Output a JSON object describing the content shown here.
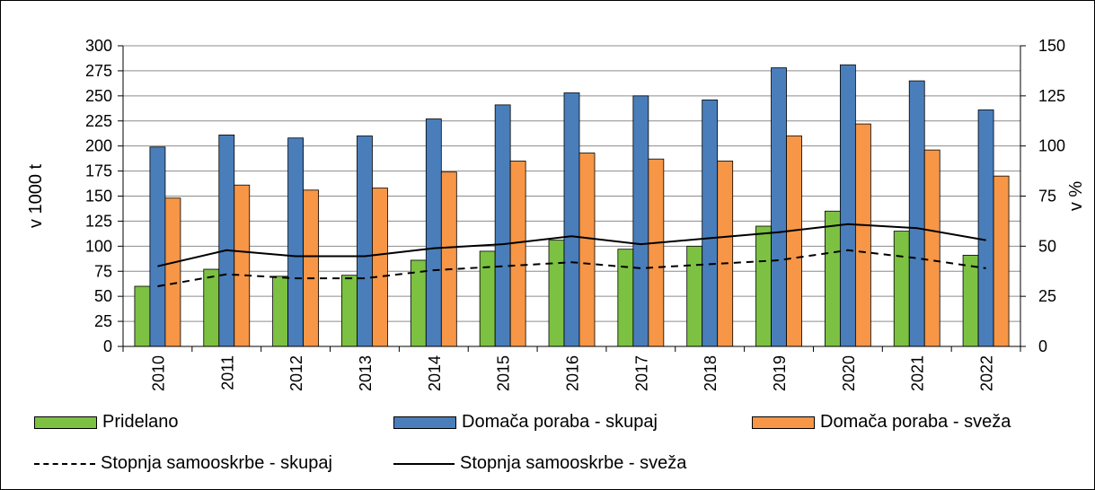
{
  "chart_data": {
    "type": "bar",
    "categories": [
      "2010",
      "2011",
      "2012",
      "2013",
      "2014",
      "2015",
      "2016",
      "2017",
      "2018",
      "2019",
      "2020",
      "2021",
      "2022"
    ],
    "series": [
      {
        "name": "Pridelano",
        "type": "bar",
        "axis": "left",
        "color": "#7cc142",
        "values": [
          60,
          77,
          70,
          71,
          86,
          95,
          106,
          97,
          100,
          120,
          135,
          115,
          91
        ]
      },
      {
        "name": "Domača poraba - skupaj",
        "type": "bar",
        "axis": "left",
        "color": "#4a7ebb",
        "values": [
          199,
          211,
          208,
          210,
          227,
          241,
          253,
          250,
          246,
          278,
          281,
          265,
          236
        ]
      },
      {
        "name": "Domača poraba - sveža",
        "type": "bar",
        "axis": "left",
        "color": "#f79646",
        "values": [
          148,
          161,
          156,
          158,
          174,
          185,
          193,
          187,
          185,
          210,
          222,
          196,
          170
        ]
      },
      {
        "name": "Stopnja samooskrbe - skupaj",
        "type": "line",
        "axis": "right",
        "style": "dashed",
        "color": "#000000",
        "values": [
          30,
          36,
          34,
          34,
          38,
          40,
          42,
          39,
          41,
          43,
          48,
          44,
          39
        ]
      },
      {
        "name": "Stopnja samooskrbe - sveža",
        "type": "line",
        "axis": "right",
        "style": "solid",
        "color": "#000000",
        "values": [
          40,
          48,
          45,
          45,
          49,
          51,
          55,
          51,
          54,
          57,
          61,
          59,
          53
        ]
      }
    ],
    "ylabel": "v 1000 t",
    "y2label": "v %",
    "ylim": [
      0,
      300
    ],
    "y2lim": [
      0,
      150
    ],
    "yticks": [
      "0",
      "25",
      "50",
      "75",
      "100",
      "125",
      "150",
      "175",
      "200",
      "225",
      "250",
      "275",
      "300"
    ],
    "y2ticks": [
      "0",
      "25",
      "50",
      "75",
      "100",
      "125",
      "150"
    ],
    "grid": true,
    "legend_position": "bottom"
  },
  "legend": {
    "pridelano": "Pridelano",
    "poraba_skupaj": "Domača poraba - skupaj",
    "poraba_sveza": "Domača poraba - sveža",
    "samooskrba_skupaj": "Stopnja samooskrbe - skupaj",
    "samooskrba_sveza": "Stopnja samooskrbe - sveža"
  }
}
